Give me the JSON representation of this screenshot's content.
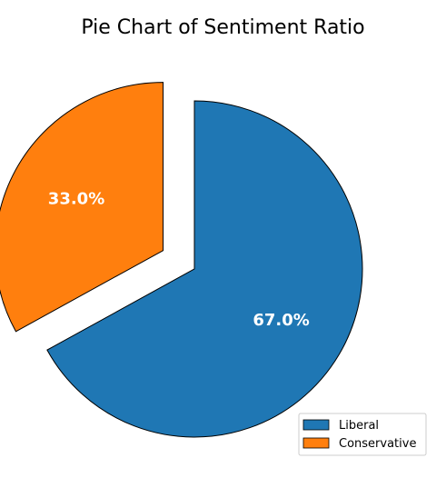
{
  "chart_data": {
    "type": "pie",
    "title": "Pie Chart of Sentiment Ratio",
    "categories": [
      "Liberal",
      "Conservative"
    ],
    "values": [
      67.0,
      33.0
    ],
    "value_labels": [
      "67.0%",
      "33.0%"
    ],
    "colors": [
      "#1f77b4",
      "#ff7f0e"
    ],
    "exploded": [
      false,
      true
    ],
    "start_angle_deg": 90,
    "direction": "clockwise",
    "legend": {
      "placement": "bottom-right",
      "entries": [
        "Liberal",
        "Conservative"
      ]
    }
  }
}
